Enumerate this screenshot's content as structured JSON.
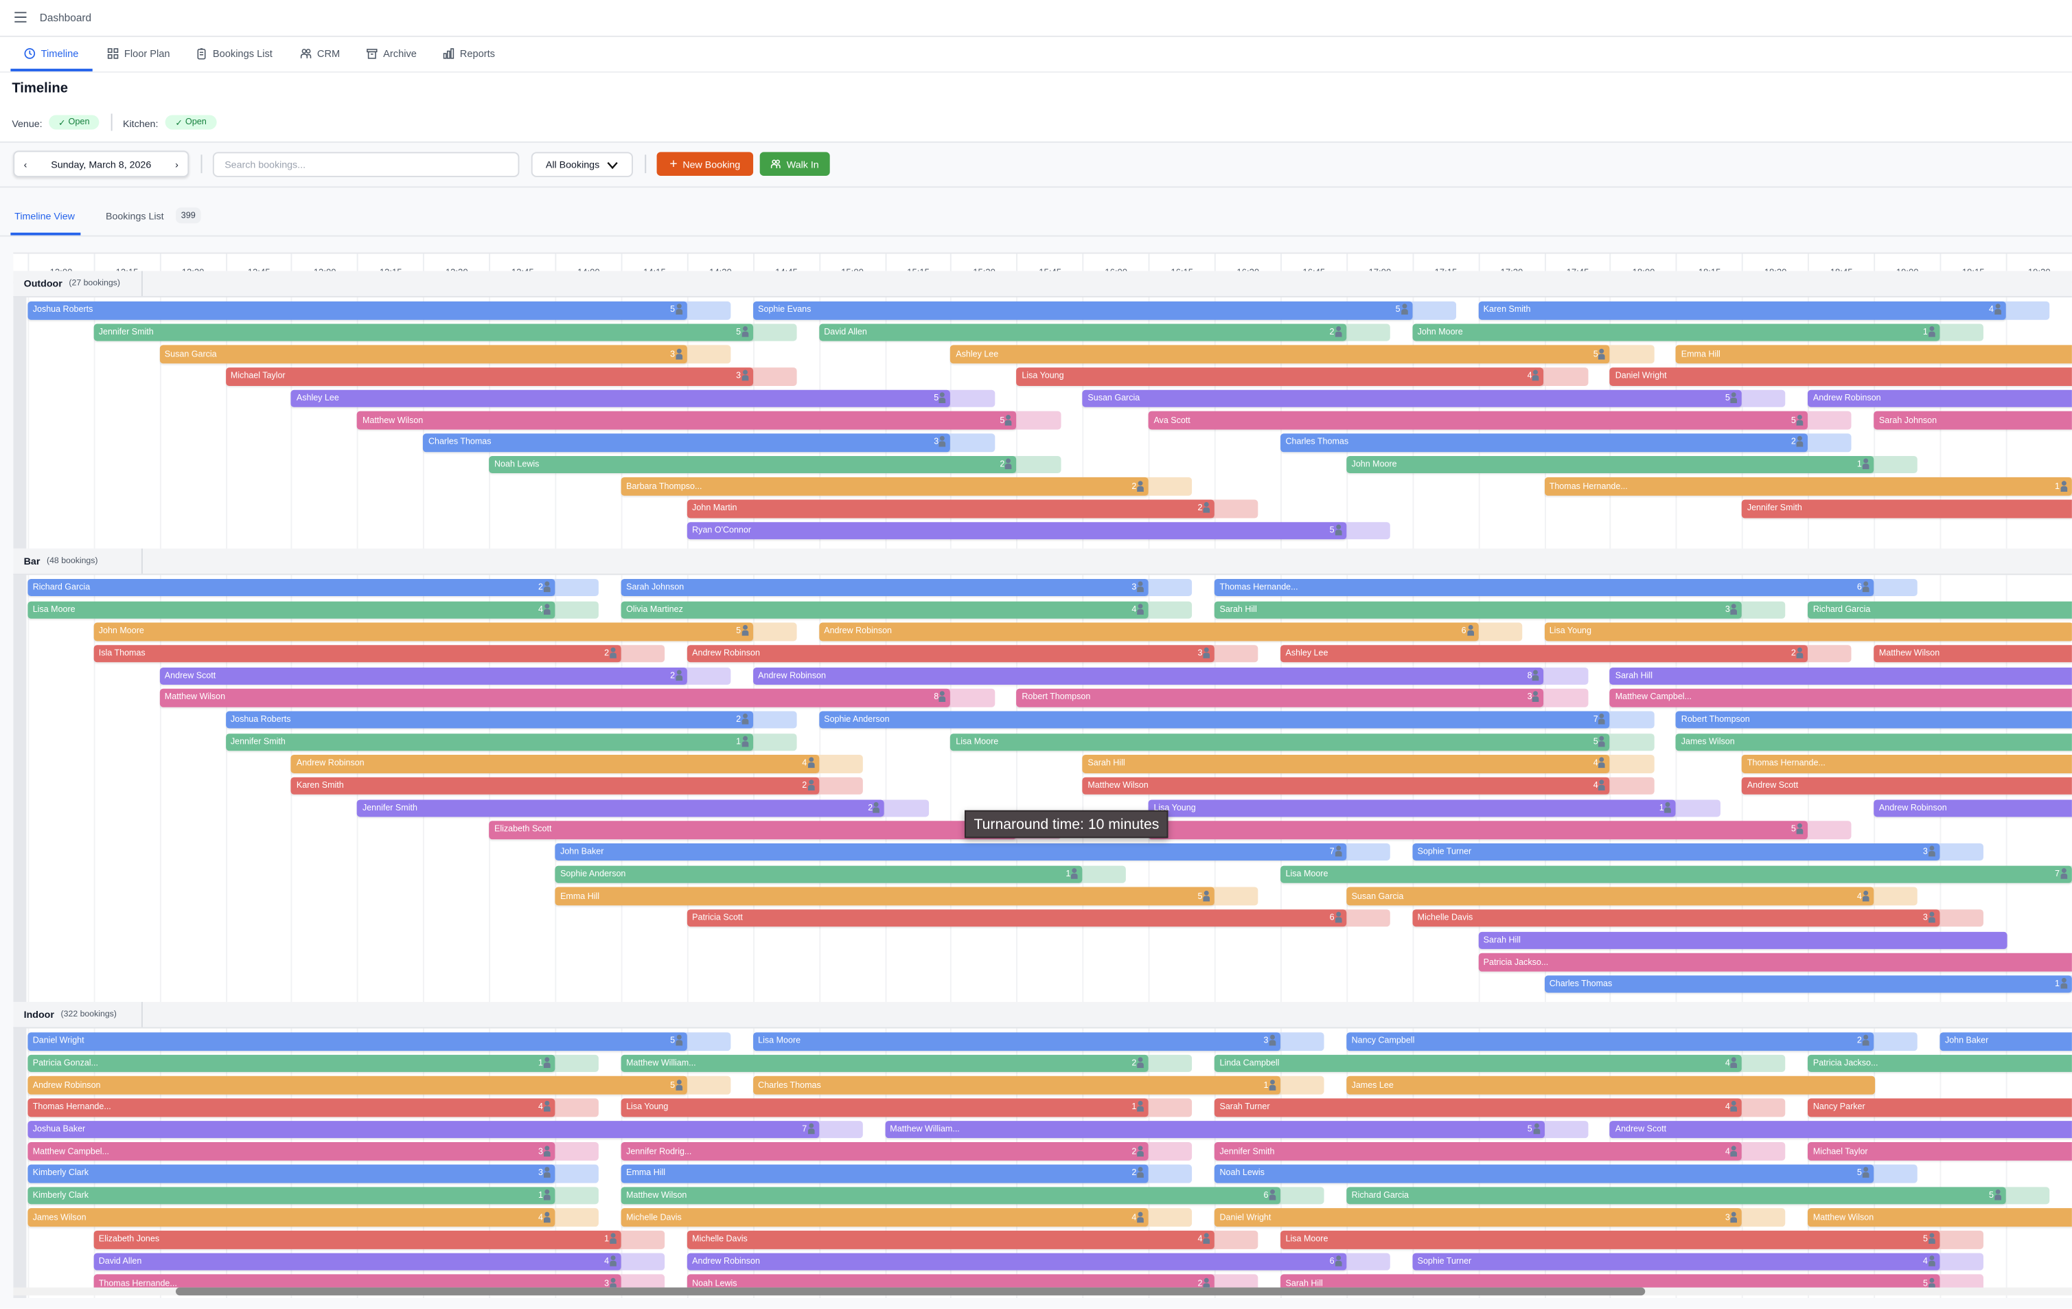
{
  "topbar": {
    "title": "Dashboard",
    "menu_icon": "hamburger-icon"
  },
  "nav": {
    "tabs": [
      {
        "label": "Timeline",
        "icon": "clock-icon",
        "active": true
      },
      {
        "label": "Floor Plan",
        "icon": "grid-icon"
      },
      {
        "label": "Bookings List",
        "icon": "clipboard-icon"
      },
      {
        "label": "CRM",
        "icon": "people-icon"
      },
      {
        "label": "Archive",
        "icon": "archive-icon"
      },
      {
        "label": "Reports",
        "icon": "bar-chart-icon"
      }
    ]
  },
  "page": {
    "title": "Timeline",
    "venue_label": "Venue:",
    "venue_status": "Open",
    "kitchen_label": "Kitchen:",
    "kitchen_status": "Open"
  },
  "toolbar": {
    "date": "Sunday, March 8, 2026",
    "search_placeholder": "Search bookings...",
    "filter": "All Bookings",
    "new_booking": "New Booking",
    "walk_in": "Walk In",
    "new_booking_color": "#e0561a",
    "walk_in_color": "#43a047"
  },
  "view_tabs": {
    "timeline": "Timeline View",
    "list": "Bookings List",
    "list_count": "399"
  },
  "timeline": {
    "times": [
      "12:00",
      "12:15",
      "12:30",
      "12:45",
      "13:00",
      "13:15",
      "13:30",
      "13:45",
      "14:00",
      "14:15",
      "14:30",
      "14:45",
      "15:00",
      "15:15",
      "15:30",
      "15:45",
      "16:00",
      "16:15",
      "16:30",
      "16:45",
      "17:00",
      "17:15",
      "17:30",
      "17:45",
      "18:00",
      "18:15",
      "18:30",
      "18:45",
      "19:00",
      "19:15",
      "19:30"
    ],
    "tooltip": "Turnaround time: 10 minutes",
    "turnaround_minutes": 10,
    "colors": [
      "#6895ee",
      "#6dbf95",
      "#eaad5a",
      "#e06b68",
      "#927bec",
      "#de6fa1"
    ],
    "turnaround_colors": [
      "#c9dafa",
      "#cde9da",
      "#f8e2c4",
      "#f4cbca",
      "#d9d0f8",
      "#f3cce0"
    ],
    "sections": [
      {
        "name": "Outdoor",
        "count": "(27 bookings)",
        "rows": [
          [
            {
              "n": "Joshua Roberts",
              "s": "12:00",
              "d": 150,
              "p": 5
            },
            {
              "n": "Sophie Evans",
              "s": "14:45",
              "d": 150,
              "p": 5
            },
            {
              "n": "Karen Smith",
              "s": "17:30",
              "d": 120,
              "p": 4
            }
          ],
          [
            {
              "n": "Jennifer Smith",
              "s": "12:15",
              "d": 150,
              "p": 5
            },
            {
              "n": "David Allen",
              "s": "15:00",
              "d": 120,
              "p": 2
            },
            {
              "n": "John Moore",
              "s": "17:15",
              "d": 120,
              "p": 1
            }
          ],
          [
            {
              "n": "Susan Garcia",
              "s": "12:30",
              "d": 120,
              "p": 3
            },
            {
              "n": "Ashley Lee",
              "s": "15:30",
              "d": 150,
              "p": 5
            },
            {
              "n": "Emma Hill",
              "s": "18:15"
            }
          ],
          [
            {
              "n": "Michael Taylor",
              "s": "12:45",
              "d": 120,
              "p": 3
            },
            {
              "n": "Lisa Young",
              "s": "15:45",
              "d": 120,
              "p": 4
            },
            {
              "n": "Daniel Wright",
              "s": "18:00"
            }
          ],
          [
            {
              "n": "Ashley Lee",
              "s": "13:00",
              "d": 150,
              "p": 5
            },
            {
              "n": "Susan Garcia",
              "s": "16:00",
              "d": 150,
              "p": 5
            },
            {
              "n": "Andrew Robinson",
              "s": "18:45"
            }
          ],
          [
            {
              "n": "Matthew Wilson",
              "s": "13:15",
              "d": 150,
              "p": 5
            },
            {
              "n": "Ava Scott",
              "s": "16:15",
              "d": 150,
              "p": 5
            },
            {
              "n": "Sarah Johnson",
              "s": "19:00"
            }
          ],
          [
            {
              "n": "Charles Thomas",
              "s": "13:30",
              "d": 120,
              "p": 3
            },
            {
              "n": "Charles Thomas",
              "s": "16:45",
              "d": 120,
              "p": 2
            }
          ],
          [
            {
              "n": "Noah Lewis",
              "s": "13:45",
              "d": 120,
              "p": 2
            },
            {
              "n": "John Moore",
              "s": "17:00",
              "d": 120,
              "p": 1
            }
          ],
          [
            {
              "n": "Barbara Thompso...",
              "s": "14:15",
              "d": 120,
              "p": 2
            },
            {
              "n": "Thomas Hernande...",
              "s": "17:45",
              "d": 120,
              "p": 1
            }
          ],
          [
            {
              "n": "John Martin",
              "s": "14:30",
              "d": 120,
              "p": 2
            },
            {
              "n": "Jennifer Smith",
              "s": "18:30"
            }
          ],
          [
            {
              "n": "Ryan O'Connor",
              "s": "14:30",
              "d": 150,
              "p": 5
            }
          ]
        ]
      },
      {
        "name": "Bar",
        "count": "(48 bookings)",
        "rows": [
          [
            {
              "n": "Richard Garcia",
              "s": "12:00",
              "d": 120,
              "p": 2
            },
            {
              "n": "Sarah Johnson",
              "s": "14:15",
              "d": 120,
              "p": 3
            },
            {
              "n": "Thomas Hernande...",
              "s": "16:30",
              "d": 150,
              "p": 6
            }
          ],
          [
            {
              "n": "Lisa Moore",
              "s": "12:00",
              "d": 120,
              "p": 4
            },
            {
              "n": "Olivia Martinez",
              "s": "14:15",
              "d": 120,
              "p": 4
            },
            {
              "n": "Sarah Hill",
              "s": "16:30",
              "d": 120,
              "p": 3
            },
            {
              "n": "Richard Garcia",
              "s": "18:45"
            }
          ],
          [
            {
              "n": "John Moore",
              "s": "12:15",
              "d": 150,
              "p": 5
            },
            {
              "n": "Andrew Robinson",
              "s": "15:00",
              "d": 150,
              "p": 6
            },
            {
              "n": "Lisa Young",
              "s": "17:45"
            }
          ],
          [
            {
              "n": "Isla Thomas",
              "s": "12:15",
              "d": 120,
              "p": 2
            },
            {
              "n": "Andrew Robinson",
              "s": "14:30",
              "d": 120,
              "p": 3
            },
            {
              "n": "Ashley Lee",
              "s": "16:45",
              "d": 120,
              "p": 2
            },
            {
              "n": "Matthew Wilson",
              "s": "19:00"
            }
          ],
          [
            {
              "n": "Andrew Scott",
              "s": "12:30",
              "d": 120,
              "p": 2
            },
            {
              "n": "Andrew Robinson",
              "s": "14:45",
              "d": 180,
              "p": 8
            },
            {
              "n": "Sarah Hill",
              "s": "18:00"
            }
          ],
          [
            {
              "n": "Matthew Wilson",
              "s": "12:30",
              "d": 180,
              "p": 8
            },
            {
              "n": "Robert Thompson",
              "s": "15:45",
              "d": 120,
              "p": 3
            },
            {
              "n": "Matthew Campbel...",
              "s": "18:00"
            }
          ],
          [
            {
              "n": "Joshua Roberts",
              "s": "12:45",
              "d": 120,
              "p": 2
            },
            {
              "n": "Sophie Anderson",
              "s": "15:00",
              "d": 180,
              "p": 7
            },
            {
              "n": "Robert Thompson",
              "s": "18:15"
            }
          ],
          [
            {
              "n": "Jennifer Smith",
              "s": "12:45",
              "d": 120,
              "p": 1
            },
            {
              "n": "Lisa Moore",
              "s": "15:30",
              "d": 150,
              "p": 5
            },
            {
              "n": "James Wilson",
              "s": "18:15"
            }
          ],
          [
            {
              "n": "Andrew Robinson",
              "s": "13:00",
              "d": 120,
              "p": 4
            },
            {
              "n": "Sarah Hill",
              "s": "16:00",
              "d": 120,
              "p": 4
            },
            {
              "n": "Thomas Hernande...",
              "s": "18:30"
            }
          ],
          [
            {
              "n": "Karen Smith",
              "s": "13:00",
              "d": 120,
              "p": 2
            },
            {
              "n": "Matthew Wilson",
              "s": "16:00",
              "d": 120,
              "p": 4
            },
            {
              "n": "Andrew Scott",
              "s": "18:30"
            }
          ],
          [
            {
              "n": "Jennifer Smith",
              "s": "13:15",
              "d": 120,
              "p": 2
            },
            {
              "n": "Lisa Young",
              "s": "16:15",
              "d": 120,
              "p": 1
            },
            {
              "n": "Andrew Robinson",
              "s": "19:00"
            }
          ],
          [
            {
              "n": "Elizabeth Scott",
              "s": "13:45",
              "d": 120
            },
            {
              "n": "",
              "s": "16:15",
              "d": 150,
              "p": 5
            }
          ],
          [
            {
              "n": "John Baker",
              "s": "14:00",
              "d": 180,
              "p": 7
            },
            {
              "n": "Sophie Turner",
              "s": "17:15",
              "d": 120,
              "p": 3
            }
          ],
          [
            {
              "n": "Sophie Anderson",
              "s": "14:00",
              "d": 120,
              "p": 1
            },
            {
              "n": "Lisa Moore",
              "s": "16:45",
              "d": 180,
              "p": 7
            }
          ],
          [
            {
              "n": "Emma Hill",
              "s": "14:00",
              "d": 150,
              "p": 5
            },
            {
              "n": "Susan Garcia",
              "s": "17:00",
              "d": 120,
              "p": 4
            }
          ],
          [
            {
              "n": "Patricia Scott",
              "s": "14:30",
              "d": 150,
              "p": 6
            },
            {
              "n": "Michelle Davis",
              "s": "17:15",
              "d": 120,
              "p": 3
            }
          ],
          [
            {
              "n": "Sarah Hill",
              "s": "17:30"
            }
          ],
          [
            {
              "n": "Patricia Jackso...",
              "s": "17:30",
              "d": 150,
              "p": 2
            }
          ],
          [
            {
              "n": "Charles Thomas",
              "s": "17:45",
              "d": 120,
              "p": 1
            }
          ]
        ]
      },
      {
        "name": "Indoor",
        "count": "(322 bookings)",
        "rows": [
          [
            {
              "n": "Daniel Wright",
              "s": "12:00",
              "d": 150,
              "p": 5
            },
            {
              "n": "Lisa Moore",
              "s": "14:45",
              "d": 120,
              "p": 3
            },
            {
              "n": "Nancy Campbell",
              "s": "17:00",
              "d": 120,
              "p": 2
            },
            {
              "n": "John Baker",
              "s": "19:15"
            }
          ],
          [
            {
              "n": "Patricia Gonzal...",
              "s": "12:00",
              "d": 120,
              "p": 1
            },
            {
              "n": "Matthew William...",
              "s": "14:15",
              "d": 120,
              "p": 2
            },
            {
              "n": "Linda Campbell",
              "s": "16:30",
              "d": 120,
              "p": 4
            },
            {
              "n": "Patricia Jackso...",
              "s": "18:45"
            }
          ],
          [
            {
              "n": "Andrew Robinson",
              "s": "12:00",
              "d": 150,
              "p": 5
            },
            {
              "n": "Charles Thomas",
              "s": "14:45",
              "d": 120,
              "p": 1
            },
            {
              "n": "James Lee",
              "s": "17:00"
            }
          ],
          [
            {
              "n": "Thomas Hernande...",
              "s": "12:00",
              "d": 120,
              "p": 4
            },
            {
              "n": "Lisa Young",
              "s": "14:15",
              "d": 120,
              "p": 1
            },
            {
              "n": "Sarah Turner",
              "s": "16:30",
              "d": 120,
              "p": 4
            },
            {
              "n": "Nancy Parker",
              "s": "18:45"
            }
          ],
          [
            {
              "n": "Joshua Baker",
              "s": "12:00",
              "d": 180,
              "p": 7
            },
            {
              "n": "Matthew William...",
              "s": "15:15",
              "d": 150,
              "p": 5
            },
            {
              "n": "Andrew Scott",
              "s": "18:00"
            }
          ],
          [
            {
              "n": "Matthew Campbel...",
              "s": "12:00",
              "d": 120,
              "p": 3
            },
            {
              "n": "Jennifer Rodrig...",
              "s": "14:15",
              "d": 120,
              "p": 2
            },
            {
              "n": "Jennifer Smith",
              "s": "16:30",
              "d": 120,
              "p": 4
            },
            {
              "n": "Michael Taylor",
              "s": "18:45"
            }
          ],
          [
            {
              "n": "Kimberly Clark",
              "s": "12:00",
              "d": 120,
              "p": 3
            },
            {
              "n": "Emma Hill",
              "s": "14:15",
              "d": 120,
              "p": 2
            },
            {
              "n": "Noah Lewis",
              "s": "16:30",
              "d": 150,
              "p": 5
            }
          ],
          [
            {
              "n": "Kimberly Clark",
              "s": "12:00",
              "d": 120,
              "p": 1
            },
            {
              "n": "Matthew Wilson",
              "s": "14:15",
              "d": 150,
              "p": 6
            },
            {
              "n": "Richard Garcia",
              "s": "17:00",
              "d": 150,
              "p": 5
            }
          ],
          [
            {
              "n": "James Wilson",
              "s": "12:00",
              "d": 120,
              "p": 4
            },
            {
              "n": "Michelle Davis",
              "s": "14:15",
              "d": 120,
              "p": 4
            },
            {
              "n": "Daniel Wright",
              "s": "16:30",
              "d": 120,
              "p": 3
            },
            {
              "n": "Matthew Wilson",
              "s": "18:45"
            }
          ],
          [
            {
              "n": "Elizabeth Jones",
              "s": "12:15",
              "d": 120,
              "p": 1
            },
            {
              "n": "Michelle Davis",
              "s": "14:30",
              "d": 120,
              "p": 4
            },
            {
              "n": "Lisa Moore",
              "s": "16:45",
              "d": 150,
              "p": 5
            }
          ],
          [
            {
              "n": "David Allen",
              "s": "12:15",
              "d": 120,
              "p": 4
            },
            {
              "n": "Andrew Robinson",
              "s": "14:30",
              "d": 150,
              "p": 6
            },
            {
              "n": "Sophie Turner",
              "s": "17:15",
              "d": 120,
              "p": 4
            }
          ],
          [
            {
              "n": "Thomas Hernande...",
              "s": "12:15",
              "d": 120,
              "p": 3
            },
            {
              "n": "Noah Lewis",
              "s": "14:30",
              "d": 120,
              "p": 2
            },
            {
              "n": "Sarah Hill",
              "s": "16:45",
              "d": 150,
              "p": 5
            }
          ]
        ]
      }
    ]
  }
}
